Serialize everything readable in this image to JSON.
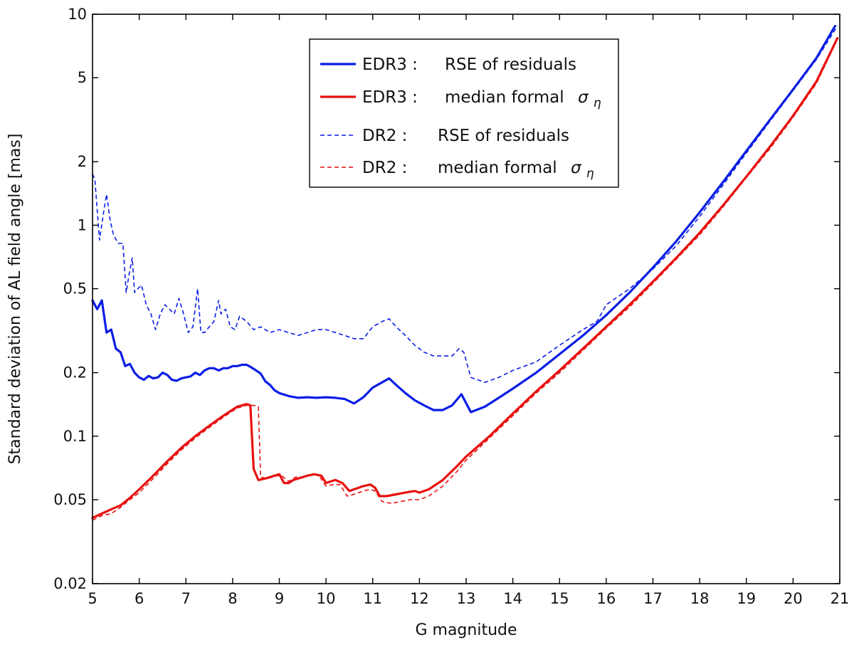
{
  "chart_data": {
    "type": "line",
    "title": "",
    "xlabel": "G magnitude",
    "ylabel": "Standard deviation of AL field angle [mas]",
    "xlim": [
      5,
      21
    ],
    "ylim": [
      0.02,
      10
    ],
    "yscale": "log",
    "grid": false,
    "legend_position": "top-center",
    "x_ticks": [
      5,
      6,
      7,
      8,
      9,
      10,
      11,
      12,
      13,
      14,
      15,
      16,
      17,
      18,
      19,
      20,
      21
    ],
    "x_tick_labels": [
      "5",
      "6",
      "7",
      "8",
      "9",
      "10",
      "11",
      "12",
      "13",
      "14",
      "15",
      "16",
      "17",
      "18",
      "19",
      "20",
      "21"
    ],
    "y_ticks": [
      0.02,
      0.05,
      0.1,
      0.2,
      0.5,
      1,
      2,
      5,
      10
    ],
    "y_tick_labels": [
      "0.02",
      "0.05",
      "0.1",
      "0.2",
      "0.5",
      "1",
      "2",
      "5",
      "10"
    ],
    "series": [
      {
        "name": "EDR3 : RSE of residuals",
        "legend_prefix": "EDR3 :",
        "legend_text": "RSE of residuals",
        "color": "#0a1ee6",
        "style": "solid",
        "x": [
          5.0,
          5.1,
          5.2,
          5.3,
          5.4,
          5.5,
          5.6,
          5.7,
          5.8,
          5.9,
          6.0,
          6.1,
          6.2,
          6.3,
          6.4,
          6.5,
          6.6,
          6.7,
          6.8,
          6.9,
          7.0,
          7.1,
          7.2,
          7.3,
          7.4,
          7.5,
          7.6,
          7.7,
          7.8,
          7.9,
          8.0,
          8.1,
          8.2,
          8.3,
          8.4,
          8.5,
          8.6,
          8.7,
          8.8,
          8.9,
          9.0,
          9.2,
          9.4,
          9.6,
          9.8,
          10.0,
          10.2,
          10.4,
          10.6,
          10.8,
          11.0,
          11.2,
          11.35,
          11.5,
          11.7,
          11.9,
          12.1,
          12.3,
          12.5,
          12.7,
          12.9,
          13.1,
          13.4,
          13.7,
          14.0,
          14.5,
          15.0,
          15.5,
          16.0,
          16.5,
          17.0,
          17.5,
          18.0,
          18.5,
          19.0,
          19.5,
          20.0,
          20.5,
          20.9
        ],
        "y": [
          0.44,
          0.4,
          0.44,
          0.31,
          0.32,
          0.26,
          0.25,
          0.215,
          0.22,
          0.2,
          0.19,
          0.185,
          0.193,
          0.188,
          0.19,
          0.2,
          0.195,
          0.185,
          0.183,
          0.188,
          0.19,
          0.192,
          0.2,
          0.195,
          0.205,
          0.21,
          0.21,
          0.205,
          0.21,
          0.21,
          0.215,
          0.215,
          0.218,
          0.218,
          0.212,
          0.205,
          0.198,
          0.182,
          0.175,
          0.165,
          0.16,
          0.155,
          0.152,
          0.153,
          0.152,
          0.153,
          0.152,
          0.15,
          0.143,
          0.153,
          0.17,
          0.18,
          0.188,
          0.175,
          0.16,
          0.148,
          0.14,
          0.133,
          0.133,
          0.14,
          0.158,
          0.13,
          0.138,
          0.152,
          0.168,
          0.2,
          0.245,
          0.3,
          0.375,
          0.48,
          0.63,
          0.84,
          1.15,
          1.6,
          2.25,
          3.15,
          4.4,
          6.2,
          8.8
        ]
      },
      {
        "name": "EDR3 : median formal σ_η",
        "legend_prefix": "EDR3 :",
        "legend_text": "median formal",
        "legend_symbol": "σ",
        "legend_subscript": "η",
        "color": "#e81010",
        "style": "solid",
        "x": [
          5.0,
          5.2,
          5.4,
          5.6,
          5.8,
          6.0,
          6.3,
          6.6,
          6.9,
          7.2,
          7.5,
          7.8,
          8.1,
          8.3,
          8.38,
          8.45,
          8.55,
          8.7,
          8.9,
          9.0,
          9.1,
          9.2,
          9.3,
          9.5,
          9.6,
          9.75,
          9.9,
          10.0,
          10.1,
          10.2,
          10.35,
          10.5,
          10.6,
          10.8,
          10.95,
          11.05,
          11.15,
          11.3,
          11.5,
          11.7,
          11.9,
          12.0,
          12.2,
          12.5,
          12.8,
          13.0,
          13.5,
          14.0,
          14.5,
          15.0,
          15.5,
          16.0,
          16.5,
          17.0,
          17.5,
          18.0,
          18.5,
          19.0,
          19.5,
          20.0,
          20.5,
          20.95
        ],
        "y": [
          0.041,
          0.043,
          0.045,
          0.047,
          0.051,
          0.056,
          0.065,
          0.076,
          0.088,
          0.1,
          0.112,
          0.125,
          0.138,
          0.142,
          0.14,
          0.07,
          0.062,
          0.063,
          0.065,
          0.066,
          0.06,
          0.06,
          0.062,
          0.064,
          0.065,
          0.066,
          0.065,
          0.06,
          0.061,
          0.062,
          0.06,
          0.055,
          0.056,
          0.058,
          0.059,
          0.057,
          0.052,
          0.052,
          0.053,
          0.054,
          0.055,
          0.054,
          0.056,
          0.062,
          0.072,
          0.08,
          0.1,
          0.128,
          0.163,
          0.205,
          0.26,
          0.33,
          0.42,
          0.54,
          0.7,
          0.92,
          1.24,
          1.7,
          2.35,
          3.3,
          4.8,
          7.7
        ]
      },
      {
        "name": "DR2 : RSE of residuals",
        "legend_prefix": "DR2 :",
        "legend_text": "RSE of residuals",
        "color": "#0a1ee6",
        "style": "dashed",
        "x": [
          5.0,
          5.05,
          5.15,
          5.25,
          5.3,
          5.38,
          5.45,
          5.55,
          5.65,
          5.72,
          5.78,
          5.85,
          5.9,
          5.97,
          6.05,
          6.15,
          6.25,
          6.35,
          6.45,
          6.55,
          6.65,
          6.75,
          6.85,
          6.95,
          7.05,
          7.15,
          7.25,
          7.32,
          7.4,
          7.5,
          7.6,
          7.7,
          7.75,
          7.85,
          7.95,
          8.05,
          8.15,
          8.3,
          8.45,
          8.6,
          8.8,
          9.0,
          9.2,
          9.4,
          9.6,
          9.8,
          10.0,
          10.2,
          10.4,
          10.6,
          10.8,
          11.0,
          11.2,
          11.35,
          11.5,
          11.7,
          11.9,
          12.1,
          12.3,
          12.5,
          12.7,
          12.85,
          12.95,
          13.1,
          13.4,
          13.7,
          14.0,
          14.5,
          15.0,
          15.5,
          15.8,
          16.0,
          16.5,
          17.0,
          17.5,
          18.0,
          18.5,
          19.0,
          19.5,
          20.0,
          20.5,
          20.95
        ],
        "y": [
          1.75,
          1.65,
          0.85,
          1.2,
          1.4,
          1.05,
          0.9,
          0.82,
          0.82,
          0.48,
          0.58,
          0.7,
          0.48,
          0.5,
          0.52,
          0.42,
          0.38,
          0.32,
          0.38,
          0.42,
          0.4,
          0.38,
          0.45,
          0.38,
          0.31,
          0.33,
          0.5,
          0.31,
          0.31,
          0.33,
          0.35,
          0.44,
          0.38,
          0.4,
          0.33,
          0.32,
          0.37,
          0.35,
          0.32,
          0.33,
          0.31,
          0.32,
          0.31,
          0.3,
          0.31,
          0.32,
          0.32,
          0.31,
          0.3,
          0.29,
          0.29,
          0.33,
          0.35,
          0.36,
          0.33,
          0.3,
          0.27,
          0.25,
          0.24,
          0.24,
          0.24,
          0.26,
          0.25,
          0.19,
          0.18,
          0.19,
          0.205,
          0.225,
          0.27,
          0.32,
          0.35,
          0.42,
          0.5,
          0.62,
          0.8,
          1.1,
          1.55,
          2.2,
          3.1,
          4.35,
          6.1,
          8.8
        ]
      },
      {
        "name": "DR2 : median formal σ_η",
        "legend_prefix": "DR2 :",
        "legend_text": "median formal",
        "legend_symbol": "σ",
        "legend_subscript": "η",
        "color": "#e81010",
        "style": "dashed",
        "x": [
          5.0,
          5.2,
          5.4,
          5.6,
          5.8,
          6.0,
          6.3,
          6.6,
          6.9,
          7.2,
          7.5,
          7.8,
          8.1,
          8.3,
          8.45,
          8.55,
          8.6,
          8.75,
          8.95,
          9.05,
          9.2,
          9.35,
          9.55,
          9.7,
          9.85,
          10.0,
          10.15,
          10.3,
          10.45,
          10.6,
          10.8,
          10.95,
          11.05,
          11.2,
          11.4,
          11.6,
          11.8,
          12.0,
          12.2,
          12.5,
          12.8,
          13.0,
          13.5,
          14.0,
          14.5,
          15.0,
          15.5,
          16.0,
          16.5,
          17.0,
          17.5,
          18.0,
          18.5,
          19.0,
          19.5,
          20.0,
          20.5,
          20.95
        ],
        "y": [
          0.04,
          0.042,
          0.043,
          0.046,
          0.05,
          0.054,
          0.063,
          0.074,
          0.086,
          0.098,
          0.11,
          0.123,
          0.136,
          0.14,
          0.14,
          0.138,
          0.064,
          0.063,
          0.065,
          0.065,
          0.061,
          0.064,
          0.064,
          0.066,
          0.065,
          0.058,
          0.059,
          0.059,
          0.052,
          0.053,
          0.055,
          0.056,
          0.055,
          0.049,
          0.048,
          0.049,
          0.05,
          0.05,
          0.052,
          0.058,
          0.068,
          0.077,
          0.098,
          0.125,
          0.16,
          0.2,
          0.255,
          0.325,
          0.41,
          0.53,
          0.69,
          0.9,
          1.22,
          1.68,
          2.3,
          3.25,
          4.7,
          7.6
        ]
      }
    ]
  }
}
